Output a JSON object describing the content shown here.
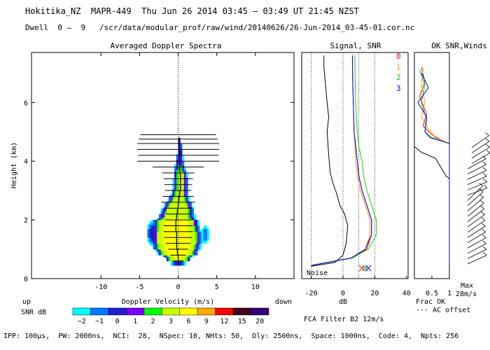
{
  "header": {
    "line1": "Hokitika_NZ  MAPR-449  Thu Jun 26 2014 03:45 – 03:49 UT 21:45 NZST",
    "line2": "Dwell  0 –  9   /scr/data/modular_prof/raw/wind/20140626/26-Jun-2014_03-45-01.cor.nc"
  },
  "footer": {
    "params": "IPP: 100μs,  PW: 2000ns,  NCI:  28,  NSpec: 10, NHts: 50,  Dly: 2500ns,  Space: 1000ns,  Code: 4,  Npts: 256",
    "fca": "FCA Filter B2 12m/s"
  },
  "chart_data": [
    {
      "type": "heatmap",
      "title": "Averaged Doppler Spectra",
      "xlabel": "Doppler Velocity (m/s)",
      "ylabel": "Height (km)",
      "xlim": [
        -19,
        15
      ],
      "ylim": [
        0,
        7.7
      ],
      "xticks": [
        -10,
        -5,
        0,
        5,
        10
      ],
      "yticks": [
        0,
        2,
        4,
        6
      ],
      "up_label": "up",
      "down_label": "down",
      "snr_label": "SNR dB",
      "snr_levels": [
        -2,
        -1,
        0,
        1,
        2,
        3,
        6,
        9,
        12,
        15,
        20
      ],
      "snr_tick_labels": [
        "−2",
        "−1",
        "0",
        "1",
        "2",
        "3",
        "6",
        "9",
        "12",
        "15",
        "20"
      ],
      "snr_colors": [
        "#00ffff",
        "#0078ff",
        "#1e1ecc",
        "#7b00ff",
        "#00ff00",
        "#c8ff00",
        "#ffff00",
        "#ffaa00",
        "#ff0000",
        "#440022",
        "#330077"
      ],
      "profile": [
        {
          "h": 0.7,
          "mean": 0.0,
          "width": 1.6,
          "peak": 3
        },
        {
          "h": 0.9,
          "mean": -0.1,
          "width": 2.2,
          "peak": 6
        },
        {
          "h": 1.1,
          "mean": -0.2,
          "width": 2.6,
          "peak": 6
        },
        {
          "h": 1.3,
          "mean": -0.2,
          "width": 2.8,
          "peak": 6
        },
        {
          "h": 1.5,
          "mean": -0.2,
          "width": 2.8,
          "peak": 6
        },
        {
          "h": 1.7,
          "mean": -0.3,
          "width": 2.6,
          "peak": 6
        },
        {
          "h": 1.9,
          "mean": -0.3,
          "width": 2.5,
          "peak": 6
        },
        {
          "h": 2.1,
          "mean": -0.2,
          "width": 2.3,
          "peak": 3
        },
        {
          "h": 2.3,
          "mean": -0.1,
          "width": 2.1,
          "peak": 3
        },
        {
          "h": 2.5,
          "mean": 0.0,
          "width": 1.8,
          "peak": 3
        },
        {
          "h": 2.7,
          "mean": 0.1,
          "width": 1.4,
          "peak": 2
        },
        {
          "h": 2.9,
          "mean": 0.2,
          "width": 1.2,
          "peak": 1
        },
        {
          "h": 3.1,
          "mean": 0.3,
          "width": 1.1,
          "peak": 1
        },
        {
          "h": 3.3,
          "mean": 0.3,
          "width": 1.1,
          "peak": 1
        },
        {
          "h": 3.5,
          "mean": 0.3,
          "width": 1.0,
          "peak": 1
        },
        {
          "h": 3.7,
          "mean": 0.2,
          "width": 0.9,
          "peak": 0
        },
        {
          "h": 3.9,
          "mean": 0.2,
          "width": 0.8,
          "peak": -1
        },
        {
          "h": 4.1,
          "mean": 0.2,
          "width": 0.6,
          "peak": -1
        },
        {
          "h": 4.3,
          "mean": 0.2,
          "width": 0.5,
          "peak": -2
        },
        {
          "h": 4.5,
          "mean": 0.2,
          "width": 0.4,
          "peak": -2
        },
        {
          "h": 4.7,
          "mean": 0.1,
          "width": 0.3,
          "peak": -2
        }
      ],
      "side_blobs": [
        {
          "h": 1.55,
          "x": -3.2,
          "hh": 0.45,
          "ww": 0.9,
          "peak": 0
        },
        {
          "h": 1.5,
          "x": 3.5,
          "hh": 0.35,
          "ww": 0.6,
          "peak": -1
        }
      ],
      "moment_bars": [
        {
          "h": 0.6,
          "half": 0.7
        },
        {
          "h": 0.8,
          "half": 1.0
        },
        {
          "h": 1.0,
          "half": 1.3
        },
        {
          "h": 1.2,
          "half": 1.6
        },
        {
          "h": 1.4,
          "half": 1.8
        },
        {
          "h": 1.6,
          "half": 1.9
        },
        {
          "h": 1.8,
          "half": 1.9
        },
        {
          "h": 2.0,
          "half": 1.7
        },
        {
          "h": 2.2,
          "half": 1.6
        },
        {
          "h": 2.4,
          "half": 1.8
        },
        {
          "h": 2.6,
          "half": 2.2
        },
        {
          "h": 2.8,
          "half": 2.0
        },
        {
          "h": 3.0,
          "half": 1.7
        },
        {
          "h": 3.2,
          "half": 1.8
        },
        {
          "h": 3.4,
          "half": 1.9
        },
        {
          "h": 3.6,
          "half": 2.1
        },
        {
          "h": 3.8,
          "half": 3.3
        },
        {
          "h": 4.0,
          "half": 5.3
        },
        {
          "h": 4.2,
          "half": 5.2
        },
        {
          "h": 4.4,
          "half": 5.3
        },
        {
          "h": 4.6,
          "half": 5.3
        },
        {
          "h": 4.75,
          "half": 5.1
        },
        {
          "h": 4.9,
          "half": 4.9
        }
      ]
    },
    {
      "type": "line",
      "title": "Signal, SNR",
      "xlabel": "dB",
      "xlim": [
        -26,
        41
      ],
      "ylim": [
        0,
        7.7
      ],
      "xticks": [
        -20,
        0,
        20,
        40
      ],
      "noise_label": "Noise",
      "series": [
        {
          "name": "0",
          "color": "#ff0000",
          "points": [
            [
              -20,
              0.45
            ],
            [
              5,
              0.7
            ],
            [
              15,
              1.0
            ],
            [
              18,
              1.5
            ],
            [
              18,
              2.0
            ],
            [
              15,
              2.5
            ],
            [
              12,
              3.0
            ],
            [
              10,
              3.5
            ],
            [
              9,
              4.0
            ],
            [
              8,
              4.5
            ],
            [
              7,
              5.0
            ],
            [
              6.5,
              6.0
            ],
            [
              6,
              7.0
            ],
            [
              6,
              7.6
            ]
          ]
        },
        {
          "name": "1",
          "color": "#ffa500",
          "points": [
            [
              -20,
              0.45
            ],
            [
              5,
              0.7
            ],
            [
              14,
              1.0
            ],
            [
              17,
              1.5
            ],
            [
              17,
              2.0
            ],
            [
              14,
              2.5
            ],
            [
              11,
              3.0
            ],
            [
              9,
              3.5
            ],
            [
              8,
              4.0
            ],
            [
              7.5,
              4.5
            ],
            [
              7,
              5.0
            ],
            [
              6.5,
              6.0
            ],
            [
              6,
              7.0
            ],
            [
              6,
              7.6
            ]
          ]
        },
        {
          "name": "2",
          "color": "#00dd00",
          "points": [
            [
              -20,
              0.45
            ],
            [
              6,
              0.7
            ],
            [
              16,
              1.0
            ],
            [
              21,
              1.5
            ],
            [
              21,
              2.0
            ],
            [
              18,
              2.5
            ],
            [
              15,
              3.0
            ],
            [
              13,
              3.5
            ],
            [
              12,
              4.0
            ],
            [
              10,
              4.5
            ],
            [
              9,
              5.0
            ],
            [
              8,
              6.0
            ],
            [
              7.5,
              7.0
            ],
            [
              7.5,
              7.6
            ]
          ]
        },
        {
          "name": "3",
          "color": "#0000ff",
          "points": [
            [
              -20,
              0.45
            ],
            [
              5,
              0.7
            ],
            [
              14,
              1.0
            ],
            [
              18,
              1.5
            ],
            [
              18,
              2.0
            ],
            [
              15,
              2.5
            ],
            [
              12,
              3.0
            ],
            [
              10,
              3.5
            ],
            [
              9,
              4.0
            ],
            [
              8,
              4.5
            ],
            [
              7,
              5.0
            ],
            [
              6.5,
              6.0
            ],
            [
              6,
              7.0
            ],
            [
              6,
              7.6
            ]
          ]
        },
        {
          "name": "signal",
          "color": "#000000",
          "points": [
            [
              -20,
              0.42
            ],
            [
              -5,
              0.55
            ],
            [
              0,
              0.8
            ],
            [
              2,
              1.2
            ],
            [
              3,
              1.8
            ],
            [
              1,
              2.2
            ],
            [
              -2,
              2.5
            ],
            [
              -4,
              2.9
            ],
            [
              -6,
              3.2
            ],
            [
              -8,
              3.6
            ],
            [
              -9,
              4.2
            ],
            [
              -10,
              5.0
            ],
            [
              -9,
              5.5
            ],
            [
              -10,
              6.0
            ],
            [
              -11,
              6.6
            ],
            [
              -12,
              7.2
            ],
            [
              -12,
              7.6
            ]
          ]
        }
      ],
      "noise_markers": [
        12,
        14,
        16
      ]
    },
    {
      "type": "line",
      "title": "OK SNR,Winds",
      "xlabel": "Frac OK",
      "xlabel2": "··· AC offset",
      "xlim": [
        0,
        1
      ],
      "ylim": [
        0,
        7.7
      ],
      "xticks": [
        0.5,
        1
      ],
      "xtick_labels": [
        "0.5",
        "1"
      ],
      "series": [
        {
          "name": "0",
          "color": "#ff0000",
          "points": [
            [
              0.2,
              7.2
            ],
            [
              0.3,
              6.7
            ],
            [
              0.15,
              6.2
            ],
            [
              0.35,
              5.6
            ],
            [
              0.25,
              5.2
            ],
            [
              0.5,
              4.9
            ],
            [
              0.8,
              4.7
            ],
            [
              1.0,
              4.6
            ],
            [
              1.0,
              3.0
            ],
            [
              1.0,
              1.5
            ],
            [
              1.0,
              0.5
            ]
          ]
        },
        {
          "name": "1",
          "color": "#ffa500",
          "points": [
            [
              0.25,
              7.2
            ],
            [
              0.2,
              6.6
            ],
            [
              0.3,
              6.0
            ],
            [
              0.2,
              5.5
            ],
            [
              0.4,
              5.1
            ],
            [
              0.6,
              4.8
            ],
            [
              1.0,
              4.6
            ],
            [
              1.0,
              3.0
            ],
            [
              1.0,
              1.5
            ],
            [
              1.0,
              0.5
            ]
          ]
        },
        {
          "name": "2",
          "color": "#00cc00",
          "points": [
            [
              0.15,
              7.1
            ],
            [
              0.3,
              6.6
            ],
            [
              0.2,
              6.0
            ],
            [
              0.35,
              5.4
            ],
            [
              0.3,
              5.0
            ],
            [
              0.5,
              4.8
            ],
            [
              1.0,
              4.6
            ],
            [
              1.0,
              3.0
            ],
            [
              1.0,
              1.5
            ],
            [
              1.0,
              0.5
            ]
          ]
        },
        {
          "name": "3",
          "color": "#0000ff",
          "points": [
            [
              0.2,
              7.0
            ],
            [
              0.4,
              6.5
            ],
            [
              0.1,
              6.0
            ],
            [
              0.35,
              5.5
            ],
            [
              0.3,
              5.0
            ],
            [
              0.45,
              4.8
            ],
            [
              1.0,
              4.6
            ],
            [
              1.0,
              3.0
            ],
            [
              1.0,
              1.5
            ],
            [
              1.0,
              0.5
            ]
          ]
        },
        {
          "name": "offset",
          "color": "#000000",
          "points": [
            [
              0.0,
              4.5
            ],
            [
              0.2,
              4.3
            ],
            [
              0.6,
              4.1
            ],
            [
              0.8,
              3.7
            ],
            [
              0.9,
              3.5
            ],
            [
              1.0,
              3.4
            ]
          ]
        }
      ],
      "max_label": "Max",
      "speed_label": "28m/s"
    }
  ]
}
